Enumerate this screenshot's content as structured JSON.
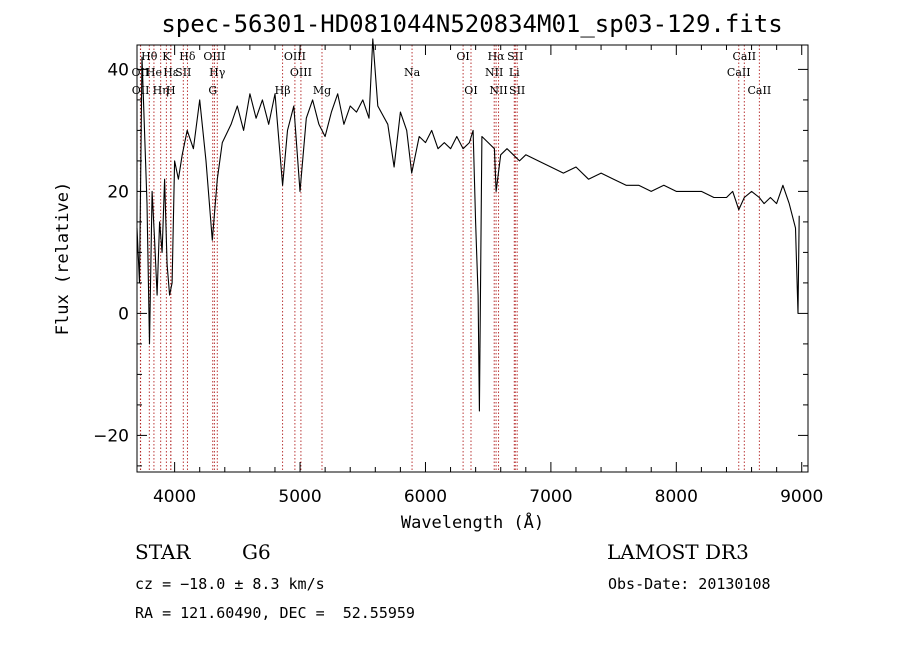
{
  "chart_data": {
    "type": "line",
    "title": "spec-56301-HD081044N520834M01_sp03-129.fits",
    "xlabel": "Wavelength (Å)",
    "ylabel": "Flux (relative)",
    "xlim": [
      3700,
      9050
    ],
    "ylim": [
      -26,
      44
    ],
    "xticks": [
      4000,
      5000,
      6000,
      7000,
      8000,
      9000
    ],
    "yticks": [
      -20,
      0,
      20,
      40
    ],
    "grid": false,
    "series": [
      {
        "name": "flux",
        "color": "#000000",
        "x": [
          3700,
          3720,
          3740,
          3760,
          3780,
          3800,
          3820,
          3840,
          3860,
          3880,
          3900,
          3920,
          3940,
          3960,
          3980,
          4000,
          4030,
          4060,
          4100,
          4150,
          4200,
          4250,
          4300,
          4340,
          4380,
          4450,
          4500,
          4550,
          4600,
          4650,
          4700,
          4750,
          4800,
          4861,
          4900,
          4950,
          5000,
          5050,
          5100,
          5150,
          5200,
          5250,
          5300,
          5350,
          5400,
          5450,
          5500,
          5550,
          5580,
          5620,
          5700,
          5750,
          5800,
          5850,
          5890,
          5950,
          6000,
          6050,
          6100,
          6150,
          6200,
          6250,
          6300,
          6350,
          6380,
          6400,
          6420,
          6430,
          6450,
          6500,
          6550,
          6563,
          6600,
          6650,
          6700,
          6750,
          6800,
          6900,
          7000,
          7100,
          7200,
          7300,
          7400,
          7500,
          7600,
          7700,
          7800,
          7900,
          8000,
          8100,
          8200,
          8300,
          8400,
          8450,
          8498,
          8542,
          8600,
          8662,
          8700,
          8750,
          8800,
          8850,
          8900,
          8950,
          8970,
          8980
        ],
        "y": [
          14,
          5,
          42,
          30,
          18,
          -5,
          20,
          12,
          3,
          15,
          10,
          22,
          8,
          3,
          5,
          25,
          22,
          26,
          30,
          27,
          35,
          25,
          12,
          22,
          28,
          31,
          34,
          30,
          36,
          32,
          35,
          31,
          36,
          21,
          30,
          34,
          20,
          32,
          35,
          31,
          29,
          33,
          36,
          31,
          34,
          33,
          35,
          32,
          45,
          34,
          31,
          24,
          33,
          30,
          23,
          29,
          28,
          30,
          27,
          28,
          27,
          29,
          27,
          28,
          30,
          15,
          3,
          -16,
          29,
          28,
          27,
          20,
          26,
          27,
          26,
          25,
          26,
          25,
          24,
          23,
          24,
          22,
          23,
          22,
          21,
          21,
          20,
          21,
          20,
          20,
          20,
          19,
          19,
          20,
          17,
          19,
          20,
          19,
          18,
          19,
          18,
          21,
          18,
          14,
          0,
          16
        ]
      }
    ],
    "spectral_lines": [
      {
        "label": "Hθ",
        "wavelength": 3798,
        "row": 0
      },
      {
        "label": "OII",
        "wavelength": 3727,
        "row": 1
      },
      {
        "label": "OII",
        "wavelength": 3729,
        "row": 2
      },
      {
        "label": "He",
        "wavelength": 3835,
        "row": 1
      },
      {
        "label": "Hη",
        "wavelength": 3889,
        "row": 2
      },
      {
        "label": "K",
        "wavelength": 3934,
        "row": 0
      },
      {
        "label": "H",
        "wavelength": 3969,
        "row": 2
      },
      {
        "label": "Hε",
        "wavelength": 3970,
        "row": 1
      },
      {
        "label": "SII",
        "wavelength": 4069,
        "row": 1
      },
      {
        "label": "Hδ",
        "wavelength": 4102,
        "row": 0
      },
      {
        "label": "OIII",
        "wavelength": 4317,
        "row": 0
      },
      {
        "label": "Hγ",
        "wavelength": 4340,
        "row": 1
      },
      {
        "label": "G",
        "wavelength": 4304,
        "row": 2
      },
      {
        "label": "Hβ",
        "wavelength": 4861,
        "row": 2
      },
      {
        "label": "OIII",
        "wavelength": 4959,
        "row": 0
      },
      {
        "label": "OIII",
        "wavelength": 5007,
        "row": 1
      },
      {
        "label": "Mg",
        "wavelength": 5175,
        "row": 2
      },
      {
        "label": "Na",
        "wavelength": 5893,
        "row": 1
      },
      {
        "label": "OI",
        "wavelength": 6300,
        "row": 0
      },
      {
        "label": "OI",
        "wavelength": 6363,
        "row": 2
      },
      {
        "label": "Hα",
        "wavelength": 6563,
        "row": 0
      },
      {
        "label": "NII",
        "wavelength": 6548,
        "row": 1
      },
      {
        "label": "NII",
        "wavelength": 6583,
        "row": 2
      },
      {
        "label": "SII",
        "wavelength": 6716,
        "row": 0
      },
      {
        "label": "Li",
        "wavelength": 6708,
        "row": 1
      },
      {
        "label": "SII",
        "wavelength": 6731,
        "row": 2
      },
      {
        "label": "CaII",
        "wavelength": 8542,
        "row": 0
      },
      {
        "label": "CaII",
        "wavelength": 8498,
        "row": 1
      },
      {
        "label": "CaII",
        "wavelength": 8662,
        "row": 2
      }
    ]
  },
  "info": {
    "class": "STAR",
    "subclass": "G6",
    "survey": "LAMOST DR3",
    "cz": "cz = −18.0 ± 8.3 km/s",
    "obs_date": "Obs-Date: 20130108",
    "radec": "RA = 121.60490, DEC =  52.55959"
  }
}
